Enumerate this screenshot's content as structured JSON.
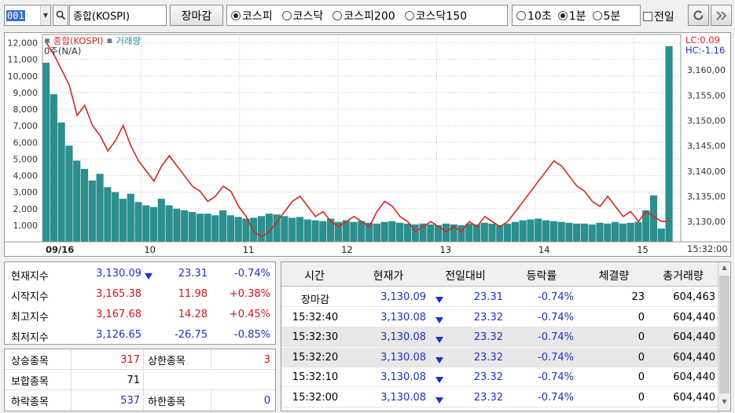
{
  "toolbar": {
    "code": "001",
    "name": "종합(KOSPI)",
    "close_button": "장마감",
    "market_options": [
      "코스피",
      "코스닥",
      "코스피200",
      "코스닥150"
    ],
    "market_selected": 0,
    "interval_options": [
      "10초",
      "1분",
      "5분"
    ],
    "interval_selected": 1,
    "prev_day_label": "전일"
  },
  "chart": {
    "legend_index": "종합(KOSPI)",
    "legend_volume": "거래량",
    "sub_label": "0주(N/A)",
    "lc_label": "LC:0.09",
    "hc_label": "HC:-1.16",
    "corner_time": "15:32:00",
    "colors": {
      "price_line": "#d7261e",
      "volume": "#2d8f8f",
      "grid": "#c8c8c8",
      "axis_text": "#333"
    }
  },
  "chart_data": {
    "type": "line",
    "x_ticks": [
      "09/16",
      "10",
      "11",
      "12",
      "13",
      "14",
      "15"
    ],
    "left_axis_ticks": [
      "12,000",
      "11,000",
      "10,000",
      "9,000",
      "8,000",
      "7,000",
      "6,000",
      "5,000",
      "4,000",
      "3,000",
      "2,000",
      "1,000"
    ],
    "right_axis_ticks": [
      "3,160,00",
      "3,155,00",
      "3,150,00",
      "3,145,00",
      "3,140,00",
      "3,135,00",
      "3,130,00"
    ],
    "ylim_left": [
      0,
      12500
    ],
    "ylim_right": [
      3126,
      3167
    ],
    "price_series": [
      3165.4,
      3163,
      3160,
      3157,
      3151,
      3153,
      3149,
      3147,
      3144,
      3146,
      3149,
      3145,
      3142,
      3140,
      3138,
      3141,
      3143,
      3141,
      3139,
      3137,
      3136,
      3134,
      3135,
      3137,
      3136,
      3133,
      3131,
      3128,
      3127,
      3128,
      3130,
      3132,
      3134,
      3135,
      3133,
      3131,
      3132,
      3130,
      3129,
      3130,
      3131,
      3130,
      3129,
      3132,
      3134,
      3133,
      3131,
      3130,
      3128,
      3129,
      3130,
      3129,
      3128,
      3129,
      3128,
      3130,
      3129,
      3131,
      3130,
      3129,
      3130,
      3132,
      3134,
      3136,
      3138,
      3140,
      3142,
      3141,
      3139,
      3137,
      3136,
      3134,
      3133,
      3135,
      3133,
      3131,
      3132,
      3130,
      3132,
      3131,
      3130,
      3130.09
    ],
    "volume_series": [
      10800,
      8900,
      7200,
      5800,
      4900,
      4400,
      3700,
      4100,
      3300,
      3000,
      2600,
      2900,
      2400,
      2200,
      2100,
      2600,
      2200,
      2000,
      1900,
      1800,
      1700,
      1700,
      1600,
      1900,
      1600,
      1500,
      1400,
      1450,
      1550,
      1700,
      1650,
      1550,
      1450,
      1500,
      1350,
      1300,
      1250,
      1400,
      1200,
      1300,
      1200,
      1250,
      1150,
      1100,
      1200,
      1250,
      1150,
      1100,
      1050,
      1100,
      1050,
      1000,
      1100,
      1050,
      1000,
      1100,
      1050,
      1150,
      1100,
      1000,
      1100,
      1200,
      1300,
      1350,
      1400,
      1300,
      1250,
      1200,
      1150,
      1100,
      1100,
      1050,
      1150,
      1100,
      1200,
      1100,
      1150,
      1200,
      1900,
      2800,
      800,
      11800
    ]
  },
  "index_panel": [
    {
      "label": "현재지수",
      "value": "3,130.09",
      "change": "23.31",
      "rate": "-0.74%",
      "dir": "down"
    },
    {
      "label": "시작지수",
      "value": "3,165.38",
      "change": "11.98",
      "rate": "+0.38%",
      "dir": "up"
    },
    {
      "label": "최고지수",
      "value": "3,167.68",
      "change": "14.28",
      "rate": "+0.45%",
      "dir": "up"
    },
    {
      "label": "최저지수",
      "value": "3,126.65",
      "change": "-26.75",
      "rate": "-0.85%",
      "dir": "down"
    }
  ],
  "breadth_panel": {
    "up_label": "상승종목",
    "up_value": "317",
    "upper_label": "상한종목",
    "upper_value": "3",
    "flat_label": "보합종목",
    "flat_value": "71",
    "down_label": "하락종목",
    "down_value": "537",
    "lower_label": "하한종목",
    "lower_value": "0"
  },
  "table": {
    "headers": [
      "시간",
      "현재가",
      "전일대비",
      "등락률",
      "체결량",
      "총거래량"
    ],
    "rows": [
      {
        "time": "장마감",
        "price": "3,130.09",
        "diff": "23.31",
        "rate": "-0.74%",
        "qty": "23",
        "total": "604,463"
      },
      {
        "time": "15:32:40",
        "price": "3,130.08",
        "diff": "23.32",
        "rate": "-0.74%",
        "qty": "0",
        "total": "604,440"
      },
      {
        "time": "15:32:30",
        "price": "3,130.08",
        "diff": "23.32",
        "rate": "-0.74%",
        "qty": "0",
        "total": "604,440"
      },
      {
        "time": "15:32:20",
        "price": "3,130.08",
        "diff": "23.32",
        "rate": "-0.74%",
        "qty": "0",
        "total": "604,440"
      },
      {
        "time": "15:32:10",
        "price": "3,130.08",
        "diff": "23.32",
        "rate": "-0.74%",
        "qty": "0",
        "total": "604,440"
      },
      {
        "time": "15:32:00",
        "price": "3,130.08",
        "diff": "23.32",
        "rate": "-0.74%",
        "qty": "0",
        "total": "604,440"
      }
    ]
  }
}
